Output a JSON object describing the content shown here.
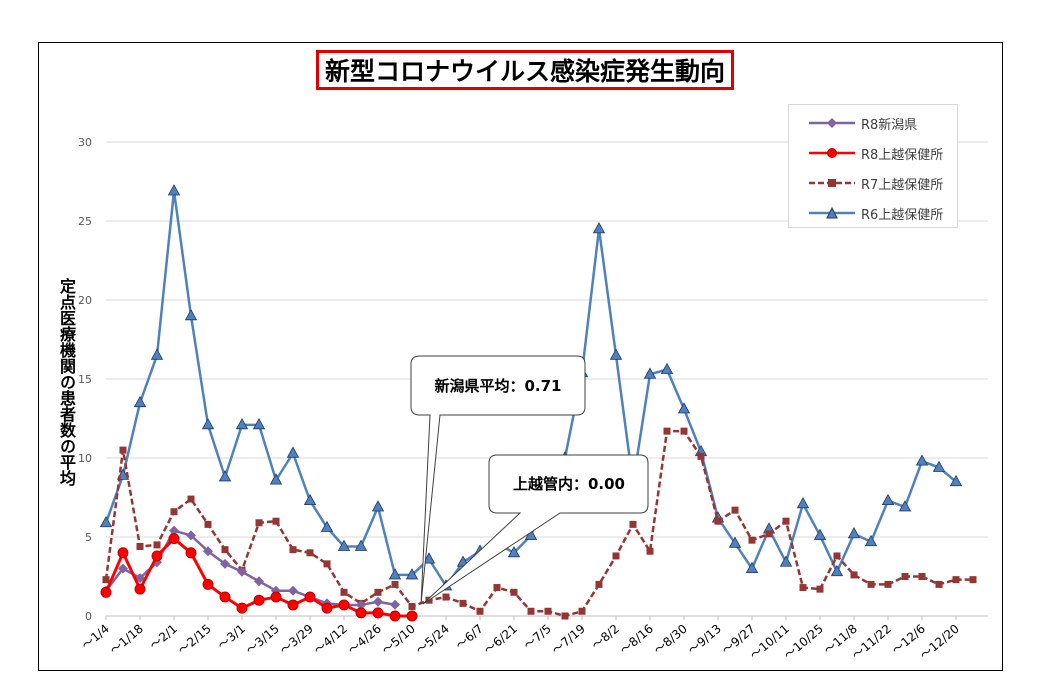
{
  "chart_data": {
    "type": "line",
    "title": "新型コロナウイルス感染症発生動向",
    "ylabel": "定点医療機関の患者数の平均",
    "xlabel": "",
    "ylim": [
      0,
      30
    ],
    "yticks": [
      "0",
      "5",
      "10",
      "15",
      "20",
      "25",
      "30"
    ],
    "grid": true,
    "legend_position": "top-right",
    "x_tick_labels": [
      "～1/4",
      "～1/18",
      "～2/1",
      "～2/15",
      "～3/1",
      "～3/15",
      "～3/29",
      "～4/12",
      "～4/26",
      "～5/10",
      "～5/24",
      "～6/7",
      "～6/21",
      "～7/5",
      "～7/19",
      "～8/2",
      "～8/16",
      "～8/30",
      "～9/13",
      "～9/27",
      "～10/11",
      "～10/25",
      "～11/8",
      "～11/22",
      "～12/6",
      "～12/20"
    ],
    "series": [
      {
        "name": "R8新潟県",
        "color": "#8064a2",
        "marker": "diamond",
        "values": [
          1.6,
          3.0,
          2.4,
          3.4,
          5.4,
          5.1,
          4.1,
          3.3,
          2.8,
          2.2,
          1.6,
          1.6,
          1.2,
          0.8,
          0.7,
          0.7,
          0.9,
          0.71
        ]
      },
      {
        "name": "R8上越保健所",
        "color": "#ff0000",
        "marker": "circle",
        "values": [
          1.5,
          4.0,
          1.7,
          3.8,
          4.9,
          4.0,
          2.0,
          1.2,
          0.5,
          1.0,
          1.2,
          0.7,
          1.2,
          0.5,
          0.7,
          0.2,
          0.2,
          0.0,
          0.0
        ]
      },
      {
        "name": "R7上越保健所",
        "color": "#943634",
        "marker": "square",
        "values": [
          2.3,
          10.5,
          4.4,
          4.5,
          6.6,
          7.4,
          5.8,
          4.2,
          2.9,
          5.9,
          6.0,
          4.2,
          4.0,
          3.3,
          1.5,
          0.8,
          1.5,
          2.0,
          0.6,
          1.0,
          1.2,
          0.8,
          0.3,
          1.8,
          1.5,
          0.3,
          0.3,
          0.0,
          0.3,
          2.0,
          3.8,
          5.8,
          4.1,
          11.7,
          11.7,
          10.1,
          6.0,
          6.7,
          4.8,
          5.2,
          6.0,
          1.8,
          1.7,
          3.8,
          2.6,
          2.0,
          2.0,
          2.5,
          2.5,
          2.0,
          2.3,
          2.3
        ]
      },
      {
        "name": "R6上越保健所",
        "color": "#4f81bd",
        "marker": "triangle",
        "values": [
          5.9,
          8.9,
          13.5,
          16.5,
          26.9,
          19.0,
          12.1,
          8.8,
          12.1,
          12.1,
          8.6,
          10.3,
          7.3,
          5.6,
          4.4,
          4.4,
          6.9,
          2.6,
          2.6,
          3.6,
          1.9,
          3.4,
          4.1,
          4.6,
          4.0,
          5.1,
          8.0,
          10.0,
          15.4,
          24.5,
          16.5,
          8.4,
          15.3,
          15.6,
          13.1,
          10.4,
          6.2,
          4.6,
          3.0,
          5.5,
          3.4,
          7.1,
          5.1,
          2.8,
          5.2,
          4.7,
          7.3,
          6.9,
          9.8,
          9.4,
          8.5
        ]
      }
    ],
    "annotations": [
      {
        "text": "新潟県平均：0.71"
      },
      {
        "text": "上越管内：0.00"
      }
    ]
  }
}
